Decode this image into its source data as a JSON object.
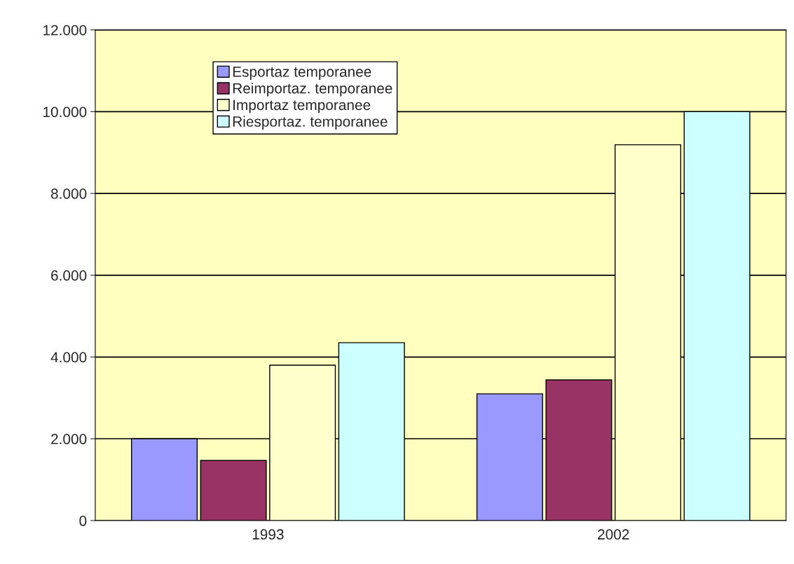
{
  "chart_data": {
    "type": "bar",
    "categories": [
      "1993",
      "2002"
    ],
    "series": [
      {
        "name": "Esportaz temporanee",
        "color": "#9999ff",
        "values": [
          2000,
          3100
        ]
      },
      {
        "name": "Reimportaz. temporanee",
        "color": "#993366",
        "values": [
          1470,
          3440
        ]
      },
      {
        "name": "Importaz temporanee",
        "color": "#ffffcc",
        "values": [
          3800,
          9190
        ]
      },
      {
        "name": "Riesportaz. temporanee",
        "color": "#ccffff",
        "values": [
          4350,
          10000
        ]
      }
    ],
    "ylim": [
      0,
      12000
    ],
    "yticks": [
      0,
      {
        "value": 2000,
        "label": "2.000"
      },
      {
        "value": 4000,
        "label": "4.000"
      },
      {
        "value": 6000,
        "label": "6.000"
      },
      {
        "value": 8000,
        "label": "8.000"
      },
      {
        "value": 10000,
        "label": "10.000"
      },
      {
        "value": 12000,
        "label": "12.000"
      }
    ],
    "grid": "y",
    "legend": "top left"
  }
}
